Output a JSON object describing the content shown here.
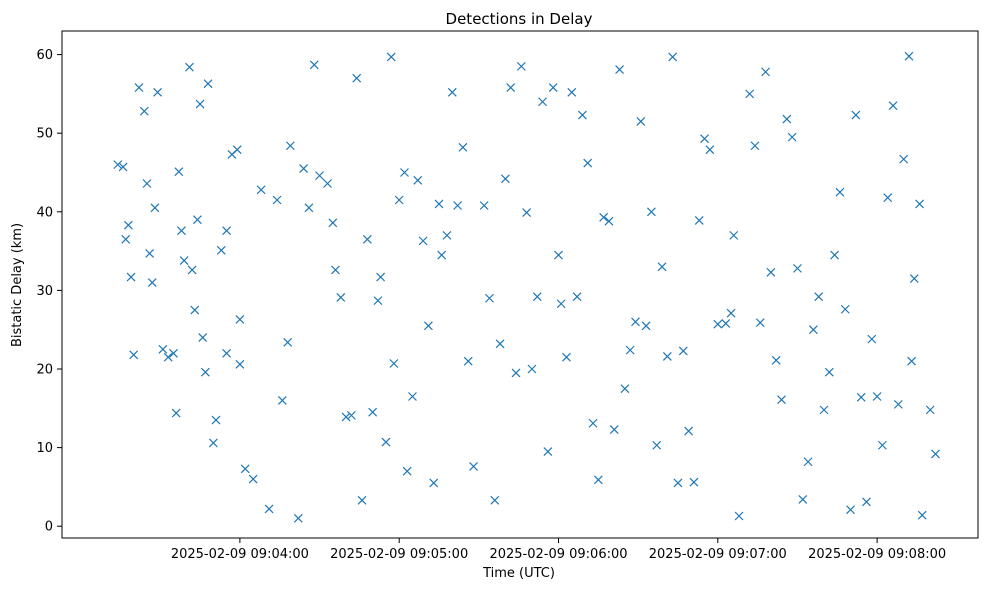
{
  "chart_data": {
    "type": "scatter",
    "title": "Detections in Delay",
    "xlabel": "Time (UTC)",
    "ylabel": "Bistatic Delay (km)",
    "marker": "x",
    "color": "#1f77b4",
    "x_ticks": [
      "2025-02-09 09:04:00",
      "2025-02-09 09:05:00",
      "2025-02-09 09:06:00",
      "2025-02-09 09:07:00",
      "2025-02-09 09:08:00"
    ],
    "x_range": [
      "2025-02-09 09:02:53",
      "2025-02-09 09:08:38"
    ],
    "y_ticks": [
      0,
      10,
      20,
      30,
      40,
      50,
      60
    ],
    "ylim": [
      -1.5,
      63
    ],
    "grid": false,
    "series": [
      {
        "points": [
          [
            "2025-02-09 09:03:14",
            46.0
          ],
          [
            "2025-02-09 09:03:16",
            45.7
          ],
          [
            "2025-02-09 09:03:17",
            36.5
          ],
          [
            "2025-02-09 09:03:18",
            38.3
          ],
          [
            "2025-02-09 09:03:19",
            31.7
          ],
          [
            "2025-02-09 09:03:20",
            21.8
          ],
          [
            "2025-02-09 09:03:22",
            55.8
          ],
          [
            "2025-02-09 09:03:24",
            52.8
          ],
          [
            "2025-02-09 09:03:25",
            43.6
          ],
          [
            "2025-02-09 09:03:26",
            34.7
          ],
          [
            "2025-02-09 09:03:27",
            31.0
          ],
          [
            "2025-02-09 09:03:28",
            40.5
          ],
          [
            "2025-02-09 09:03:29",
            55.2
          ],
          [
            "2025-02-09 09:03:31",
            22.5
          ],
          [
            "2025-02-09 09:03:33",
            21.5
          ],
          [
            "2025-02-09 09:03:35",
            22.0
          ],
          [
            "2025-02-09 09:03:36",
            14.4
          ],
          [
            "2025-02-09 09:03:37",
            45.1
          ],
          [
            "2025-02-09 09:03:38",
            37.6
          ],
          [
            "2025-02-09 09:03:39",
            33.8
          ],
          [
            "2025-02-09 09:03:41",
            58.4
          ],
          [
            "2025-02-09 09:03:42",
            32.6
          ],
          [
            "2025-02-09 09:03:43",
            27.5
          ],
          [
            "2025-02-09 09:03:44",
            39.0
          ],
          [
            "2025-02-09 09:03:45",
            53.7
          ],
          [
            "2025-02-09 09:03:46",
            24.0
          ],
          [
            "2025-02-09 09:03:47",
            19.6
          ],
          [
            "2025-02-09 09:03:48",
            56.3
          ],
          [
            "2025-02-09 09:03:50",
            10.6
          ],
          [
            "2025-02-09 09:03:51",
            13.5
          ],
          [
            "2025-02-09 09:03:53",
            35.1
          ],
          [
            "2025-02-09 09:03:55",
            37.6
          ],
          [
            "2025-02-09 09:03:55",
            22.0
          ],
          [
            "2025-02-09 09:03:57",
            47.3
          ],
          [
            "2025-02-09 09:03:59",
            47.9
          ],
          [
            "2025-02-09 09:04:00",
            26.3
          ],
          [
            "2025-02-09 09:04:00",
            20.6
          ],
          [
            "2025-02-09 09:04:02",
            7.3
          ],
          [
            "2025-02-09 09:04:05",
            6.0
          ],
          [
            "2025-02-09 09:04:08",
            42.8
          ],
          [
            "2025-02-09 09:04:11",
            2.2
          ],
          [
            "2025-02-09 09:04:14",
            41.5
          ],
          [
            "2025-02-09 09:04:16",
            16.0
          ],
          [
            "2025-02-09 09:04:18",
            23.4
          ],
          [
            "2025-02-09 09:04:19",
            48.4
          ],
          [
            "2025-02-09 09:04:22",
            1.0
          ],
          [
            "2025-02-09 09:04:24",
            45.5
          ],
          [
            "2025-02-09 09:04:26",
            40.5
          ],
          [
            "2025-02-09 09:04:28",
            58.7
          ],
          [
            "2025-02-09 09:04:30",
            44.6
          ],
          [
            "2025-02-09 09:04:33",
            43.6
          ],
          [
            "2025-02-09 09:04:35",
            38.6
          ],
          [
            "2025-02-09 09:04:36",
            32.6
          ],
          [
            "2025-02-09 09:04:38",
            29.1
          ],
          [
            "2025-02-09 09:04:40",
            13.9
          ],
          [
            "2025-02-09 09:04:42",
            14.1
          ],
          [
            "2025-02-09 09:04:44",
            57.0
          ],
          [
            "2025-02-09 09:04:46",
            3.3
          ],
          [
            "2025-02-09 09:04:48",
            36.5
          ],
          [
            "2025-02-09 09:04:50",
            14.5
          ],
          [
            "2025-02-09 09:04:52",
            28.7
          ],
          [
            "2025-02-09 09:04:53",
            31.7
          ],
          [
            "2025-02-09 09:04:55",
            10.7
          ],
          [
            "2025-02-09 09:04:57",
            59.7
          ],
          [
            "2025-02-09 09:04:58",
            20.7
          ],
          [
            "2025-02-09 09:05:00",
            41.5
          ],
          [
            "2025-02-09 09:05:02",
            45.0
          ],
          [
            "2025-02-09 09:05:03",
            7.0
          ],
          [
            "2025-02-09 09:05:05",
            16.5
          ],
          [
            "2025-02-09 09:05:07",
            44.0
          ],
          [
            "2025-02-09 09:05:09",
            36.3
          ],
          [
            "2025-02-09 09:05:11",
            25.5
          ],
          [
            "2025-02-09 09:05:13",
            5.5
          ],
          [
            "2025-02-09 09:05:15",
            41.0
          ],
          [
            "2025-02-09 09:05:16",
            34.5
          ],
          [
            "2025-02-09 09:05:18",
            37.0
          ],
          [
            "2025-02-09 09:05:20",
            55.2
          ],
          [
            "2025-02-09 09:05:22",
            40.8
          ],
          [
            "2025-02-09 09:05:24",
            48.2
          ],
          [
            "2025-02-09 09:05:26",
            21.0
          ],
          [
            "2025-02-09 09:05:28",
            7.6
          ],
          [
            "2025-02-09 09:05:32",
            40.8
          ],
          [
            "2025-02-09 09:05:34",
            29.0
          ],
          [
            "2025-02-09 09:05:36",
            3.3
          ],
          [
            "2025-02-09 09:05:38",
            23.2
          ],
          [
            "2025-02-09 09:05:40",
            44.2
          ],
          [
            "2025-02-09 09:05:42",
            55.8
          ],
          [
            "2025-02-09 09:05:44",
            19.5
          ],
          [
            "2025-02-09 09:05:46",
            58.5
          ],
          [
            "2025-02-09 09:05:48",
            39.9
          ],
          [
            "2025-02-09 09:05:50",
            20.0
          ],
          [
            "2025-02-09 09:05:52",
            29.2
          ],
          [
            "2025-02-09 09:05:54",
            54.0
          ],
          [
            "2025-02-09 09:05:56",
            9.5
          ],
          [
            "2025-02-09 09:05:58",
            55.8
          ],
          [
            "2025-02-09 09:06:00",
            34.5
          ],
          [
            "2025-02-09 09:06:01",
            28.3
          ],
          [
            "2025-02-09 09:06:03",
            21.5
          ],
          [
            "2025-02-09 09:06:05",
            55.2
          ],
          [
            "2025-02-09 09:06:07",
            29.2
          ],
          [
            "2025-02-09 09:06:09",
            52.3
          ],
          [
            "2025-02-09 09:06:11",
            46.2
          ],
          [
            "2025-02-09 09:06:13",
            13.1
          ],
          [
            "2025-02-09 09:06:15",
            5.9
          ],
          [
            "2025-02-09 09:06:17",
            39.3
          ],
          [
            "2025-02-09 09:06:19",
            38.8
          ],
          [
            "2025-02-09 09:06:21",
            12.3
          ],
          [
            "2025-02-09 09:06:23",
            58.1
          ],
          [
            "2025-02-09 09:06:25",
            17.5
          ],
          [
            "2025-02-09 09:06:27",
            22.4
          ],
          [
            "2025-02-09 09:06:29",
            26.0
          ],
          [
            "2025-02-09 09:06:31",
            51.5
          ],
          [
            "2025-02-09 09:06:33",
            25.5
          ],
          [
            "2025-02-09 09:06:35",
            40.0
          ],
          [
            "2025-02-09 09:06:37",
            10.3
          ],
          [
            "2025-02-09 09:06:39",
            33.0
          ],
          [
            "2025-02-09 09:06:41",
            21.6
          ],
          [
            "2025-02-09 09:06:43",
            59.7
          ],
          [
            "2025-02-09 09:06:45",
            5.5
          ],
          [
            "2025-02-09 09:06:47",
            22.3
          ],
          [
            "2025-02-09 09:06:49",
            12.1
          ],
          [
            "2025-02-09 09:06:51",
            5.6
          ],
          [
            "2025-02-09 09:06:53",
            38.9
          ],
          [
            "2025-02-09 09:06:55",
            49.3
          ],
          [
            "2025-02-09 09:06:57",
            47.9
          ],
          [
            "2025-02-09 09:07:00",
            25.7
          ],
          [
            "2025-02-09 09:07:03",
            25.8
          ],
          [
            "2025-02-09 09:07:05",
            27.1
          ],
          [
            "2025-02-09 09:07:06",
            37.0
          ],
          [
            "2025-02-09 09:07:08",
            1.3
          ],
          [
            "2025-02-09 09:07:12",
            55.0
          ],
          [
            "2025-02-09 09:07:14",
            48.4
          ],
          [
            "2025-02-09 09:07:16",
            25.9
          ],
          [
            "2025-02-09 09:07:18",
            57.8
          ],
          [
            "2025-02-09 09:07:20",
            32.3
          ],
          [
            "2025-02-09 09:07:22",
            21.1
          ],
          [
            "2025-02-09 09:07:24",
            16.1
          ],
          [
            "2025-02-09 09:07:26",
            51.8
          ],
          [
            "2025-02-09 09:07:28",
            49.5
          ],
          [
            "2025-02-09 09:07:30",
            32.8
          ],
          [
            "2025-02-09 09:07:32",
            3.4
          ],
          [
            "2025-02-09 09:07:34",
            8.2
          ],
          [
            "2025-02-09 09:07:36",
            25.0
          ],
          [
            "2025-02-09 09:07:38",
            29.2
          ],
          [
            "2025-02-09 09:07:40",
            14.8
          ],
          [
            "2025-02-09 09:07:42",
            19.6
          ],
          [
            "2025-02-09 09:07:44",
            34.5
          ],
          [
            "2025-02-09 09:07:46",
            42.5
          ],
          [
            "2025-02-09 09:07:48",
            27.6
          ],
          [
            "2025-02-09 09:07:50",
            2.1
          ],
          [
            "2025-02-09 09:07:52",
            52.3
          ],
          [
            "2025-02-09 09:07:54",
            16.4
          ],
          [
            "2025-02-09 09:07:56",
            3.1
          ],
          [
            "2025-02-09 09:07:58",
            23.8
          ],
          [
            "2025-02-09 09:08:00",
            16.5
          ],
          [
            "2025-02-09 09:08:02",
            10.3
          ],
          [
            "2025-02-09 09:08:04",
            41.8
          ],
          [
            "2025-02-09 09:08:06",
            53.5
          ],
          [
            "2025-02-09 09:08:08",
            15.5
          ],
          [
            "2025-02-09 09:08:10",
            46.7
          ],
          [
            "2025-02-09 09:08:12",
            59.8
          ],
          [
            "2025-02-09 09:08:13",
            21.0
          ],
          [
            "2025-02-09 09:08:14",
            31.5
          ],
          [
            "2025-02-09 09:08:16",
            41.0
          ],
          [
            "2025-02-09 09:08:17",
            1.4
          ],
          [
            "2025-02-09 09:08:20",
            14.8
          ],
          [
            "2025-02-09 09:08:22",
            9.2
          ]
        ]
      }
    ]
  }
}
